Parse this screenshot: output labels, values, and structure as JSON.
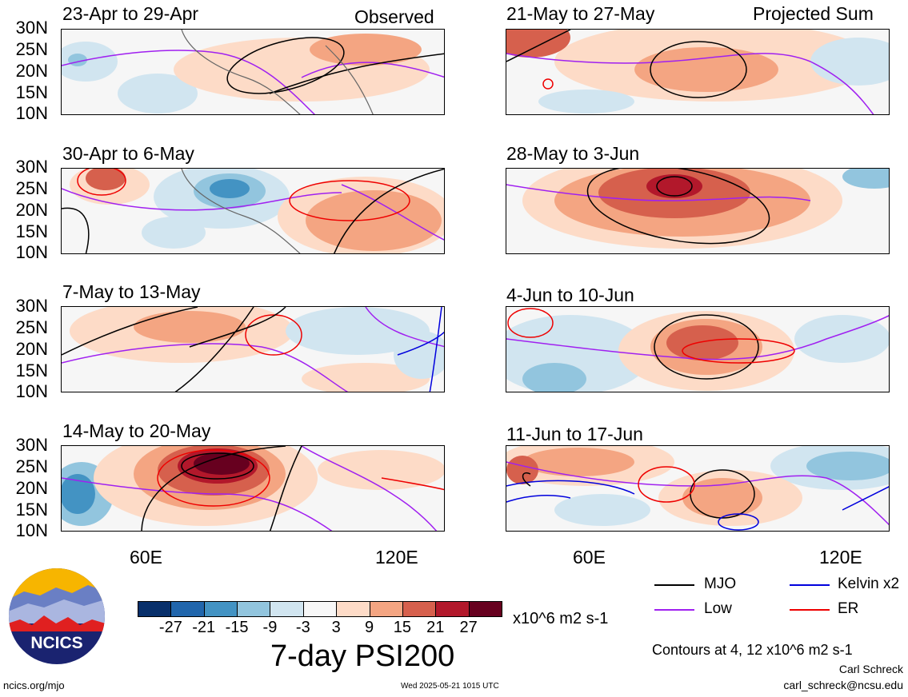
{
  "panels_left_label": "Observed",
  "panels_right_label": "Projected Sum",
  "panels": [
    {
      "col": 0,
      "row": 0,
      "title": "23-Apr to 29-Apr"
    },
    {
      "col": 0,
      "row": 1,
      "title": "30-Apr to 6-May"
    },
    {
      "col": 0,
      "row": 2,
      "title": "7-May to 13-May"
    },
    {
      "col": 0,
      "row": 3,
      "title": "14-May to 20-May"
    },
    {
      "col": 1,
      "row": 0,
      "title": "21-May to 27-May"
    },
    {
      "col": 1,
      "row": 1,
      "title": "28-May to 3-Jun"
    },
    {
      "col": 1,
      "row": 2,
      "title": "4-Jun to 10-Jun"
    },
    {
      "col": 1,
      "row": 3,
      "title": "11-Jun to 17-Jun"
    }
  ],
  "lat_labels": [
    "30N",
    "25N",
    "20N",
    "15N",
    "10N"
  ],
  "lon_labels": [
    "60E",
    "120E"
  ],
  "colorbar": {
    "colors": [
      "#08306b",
      "#2166ac",
      "#4393c3",
      "#92c5de",
      "#d1e5f0",
      "#f7f7f7",
      "#fddbc7",
      "#f4a582",
      "#d6604d",
      "#b2182b",
      "#67001f"
    ],
    "labels": [
      "-27",
      "-21",
      "-15",
      "-9",
      "-3",
      "3",
      "9",
      "15",
      "21",
      "27"
    ],
    "units": "x10^6 m2 s-1"
  },
  "title": "7-day PSI200",
  "legend": [
    {
      "name": "MJO",
      "color": "#000000"
    },
    {
      "name": "Kelvin x2",
      "color": "#0000dd"
    },
    {
      "name": "Low",
      "color": "#a020f0"
    },
    {
      "name": "ER",
      "color": "#ee0000"
    }
  ],
  "contours_note": "Contours at 4, 12 x10^6 m2 s-1",
  "author_name": "Carl Schreck",
  "author_email": "carl_schreck@ncsu.edu",
  "site": "ncics.org/mjo",
  "timestamp": "Wed 2025-05-21 1015 UTC",
  "logo_text": "NCICS"
}
